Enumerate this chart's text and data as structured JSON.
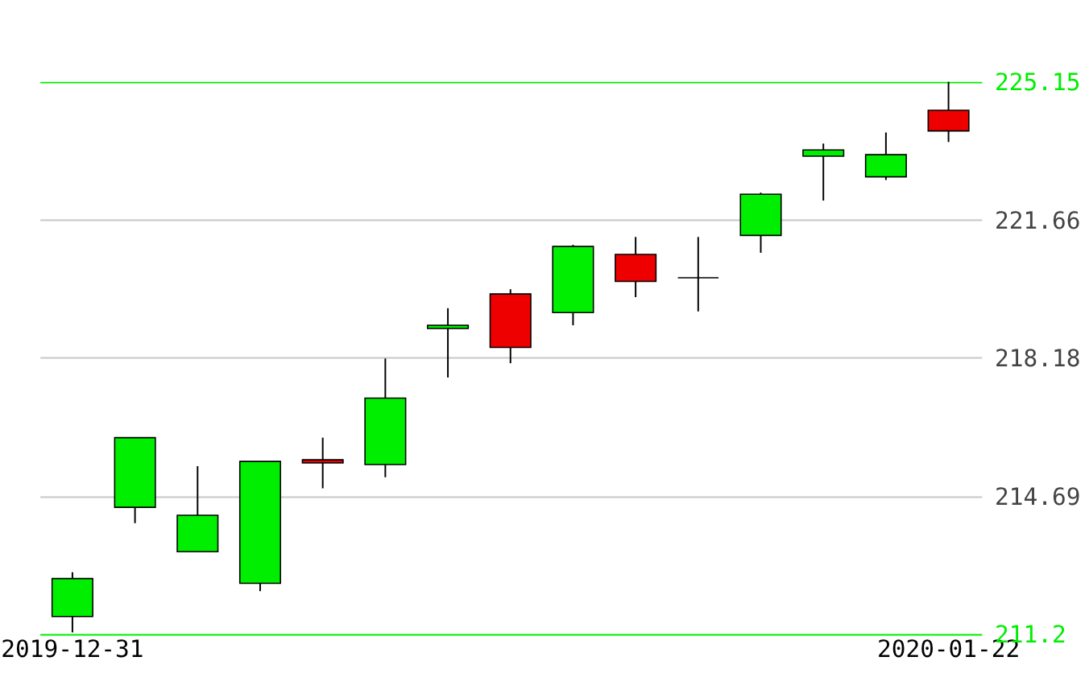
{
  "chart_data": {
    "type": "candlestick",
    "categories": [
      "2019-12-31",
      null,
      null,
      null,
      null,
      null,
      null,
      null,
      null,
      null,
      null,
      null,
      null,
      null,
      "2020-01-22"
    ],
    "ohlc": [
      [
        211.64,
        212.76,
        211.24,
        212.6
      ],
      [
        214.4,
        216.16,
        214.0,
        216.16
      ],
      [
        213.28,
        215.44,
        213.28,
        214.2
      ],
      [
        212.48,
        215.56,
        212.28,
        215.56
      ],
      [
        215.6,
        216.16,
        214.88,
        215.52
      ],
      [
        215.48,
        218.16,
        215.16,
        217.16
      ],
      [
        218.92,
        219.43,
        217.68,
        219.0
      ],
      [
        219.79,
        219.91,
        218.04,
        218.44
      ],
      [
        219.32,
        221.03,
        219.0,
        220.99
      ],
      [
        220.79,
        221.23,
        219.71,
        220.11
      ],
      [
        220.2,
        221.23,
        219.35,
        220.2
      ],
      [
        221.27,
        222.35,
        220.83,
        222.31
      ],
      [
        223.27,
        223.59,
        222.15,
        223.43
      ],
      [
        222.75,
        223.87,
        222.67,
        223.31
      ],
      [
        224.43,
        225.15,
        223.63,
        223.91
      ]
    ],
    "colors": [
      "#00ee00",
      "#00ee00",
      "#00ee00",
      "#00ee00",
      "#ee0000",
      "#00ee00",
      "#00ee00",
      "#ee0000",
      "#00ee00",
      "#ee0000",
      "#000000",
      "#00ee00",
      "#00ee00",
      "#00ee00",
      "#ee0000"
    ],
    "ylim": [
      211.2,
      225.15
    ],
    "yticks": [
      211.2,
      214.69,
      218.18,
      221.66,
      225.15
    ],
    "grid": "y"
  }
}
